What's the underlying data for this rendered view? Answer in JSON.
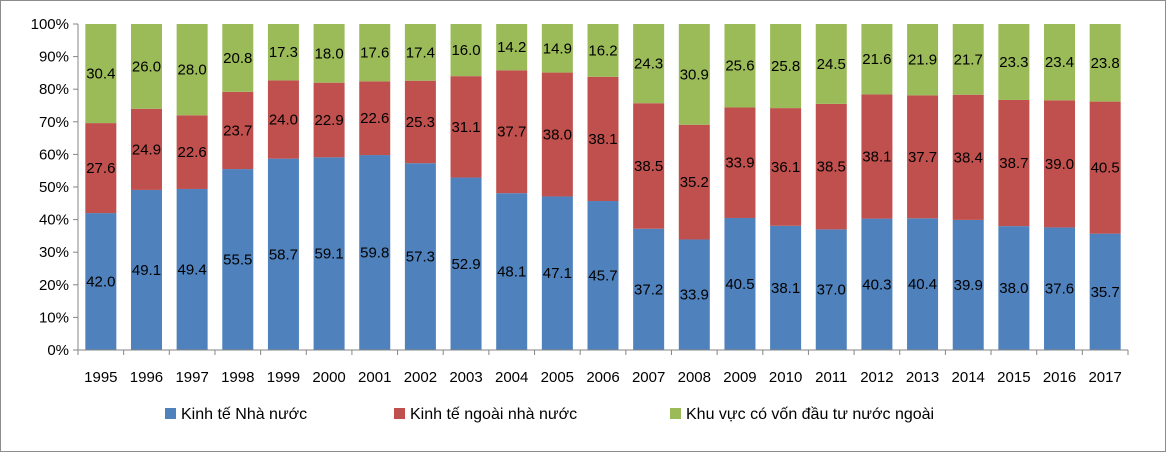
{
  "chart_data": {
    "type": "bar",
    "stacked": true,
    "percent": true,
    "title": "",
    "xlabel": "",
    "ylabel": "",
    "ylim": [
      0,
      100
    ],
    "yticks": [
      "0%",
      "10%",
      "20%",
      "30%",
      "40%",
      "50%",
      "60%",
      "70%",
      "80%",
      "90%",
      "100%"
    ],
    "grid": false,
    "legend_position": "bottom",
    "categories": [
      "1995",
      "1996",
      "1997",
      "1998",
      "1999",
      "2000",
      "2001",
      "2002",
      "2003",
      "2004",
      "2005",
      "2006",
      "2007",
      "2008",
      "2009",
      "2010",
      "2011",
      "2012",
      "2013",
      "2014",
      "2015",
      "2016",
      "2017"
    ],
    "series": [
      {
        "name": "Kinh tế Nhà nước",
        "color": "#4f81bd",
        "values": [
          42.0,
          49.1,
          49.4,
          55.5,
          58.7,
          59.1,
          59.8,
          57.3,
          52.9,
          48.1,
          47.1,
          45.7,
          37.2,
          33.9,
          40.5,
          38.1,
          37.0,
          40.3,
          40.4,
          39.9,
          38.0,
          37.6,
          35.7
        ]
      },
      {
        "name": "Kinh tế ngoài nhà nước",
        "color": "#c0504d",
        "values": [
          27.6,
          24.9,
          22.6,
          23.7,
          24.0,
          22.9,
          22.6,
          25.3,
          31.1,
          37.7,
          38.0,
          38.1,
          38.5,
          35.2,
          33.9,
          36.1,
          38.5,
          38.1,
          37.7,
          38.4,
          38.7,
          39.0,
          40.5
        ]
      },
      {
        "name": "Khu vực có vốn đầu tư nước ngoài",
        "color": "#9bbb59",
        "values": [
          30.4,
          26.0,
          28.0,
          20.8,
          17.3,
          18.0,
          17.6,
          17.4,
          16.0,
          14.2,
          14.9,
          16.2,
          24.3,
          30.9,
          25.6,
          25.8,
          24.5,
          21.6,
          21.9,
          21.7,
          23.3,
          23.4,
          23.8
        ]
      }
    ]
  }
}
